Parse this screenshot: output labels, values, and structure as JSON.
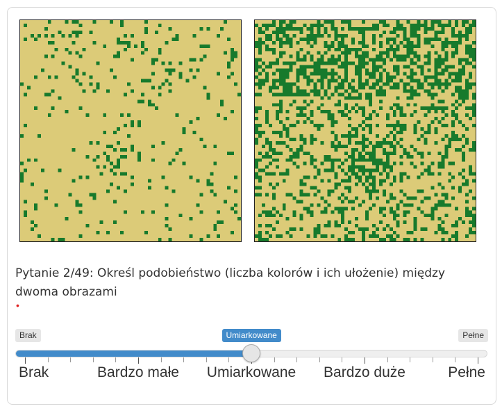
{
  "images": {
    "left": {
      "name": "pattern-left",
      "green": "#177a2c",
      "background": "#dccb78",
      "density": 0.06
    },
    "right": {
      "name": "pattern-right",
      "green": "#177a2c",
      "background": "#dccb78",
      "density": 0.28
    }
  },
  "question": {
    "text": "Pytanie 2/49: Określ podobieństwo (liczba kolorów i ich ułożenie) między dwoma obrazami",
    "required_mark": "•"
  },
  "slider": {
    "min_label": "Brak",
    "max_label": "Pełne",
    "current_label": "Umiarkowane",
    "value": 0.5,
    "accent": "#428bca",
    "grid_labels": [
      "Brak",
      "Bardzo małe",
      "Umiarkowane",
      "Bardzo duże",
      "Pełne"
    ]
  }
}
